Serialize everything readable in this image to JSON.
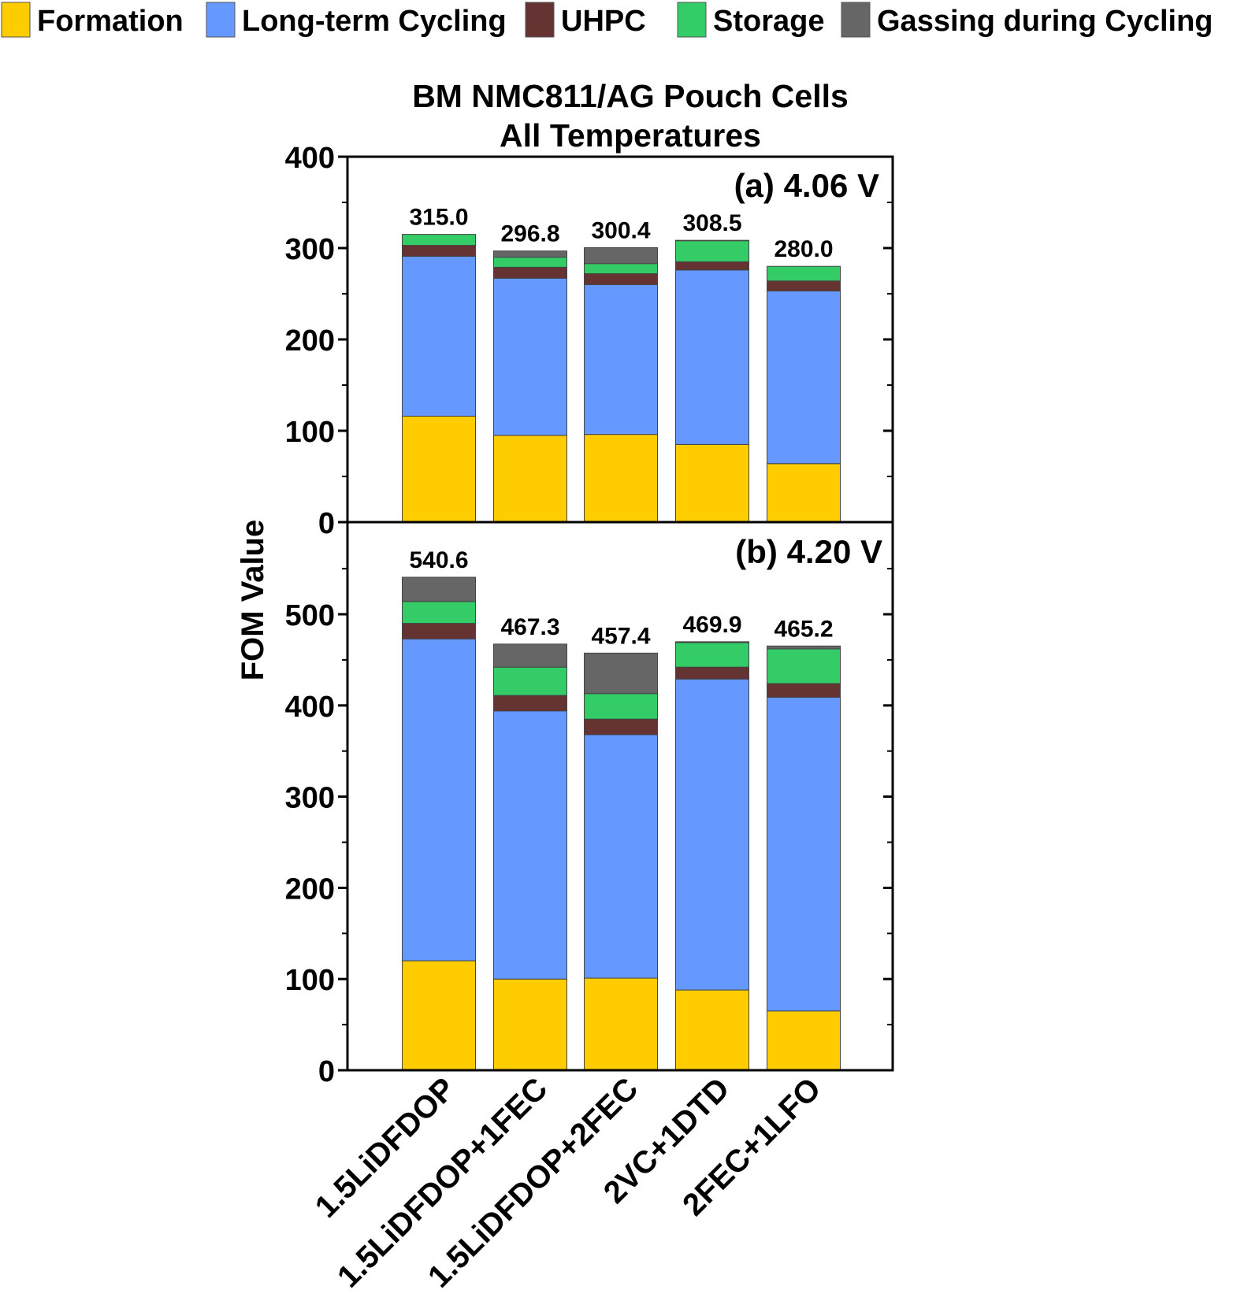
{
  "chart_data": {
    "type": "bar",
    "stacked": true,
    "title": [
      "BM NMC811/AG Pouch Cells",
      "All Temperatures"
    ],
    "ylabel": "FOM Value",
    "categories": [
      "1.5LiDFDOP",
      "1.5LiDFDOP+1FEC",
      "1.5LiDFDOP+2FEC",
      "2VC+1DTD",
      "2FEC+1LFO"
    ],
    "legend": [
      {
        "name": "Formation",
        "color": "#ffcc00"
      },
      {
        "name": "Long-term Cycling",
        "color": "#6699ff"
      },
      {
        "name": "UHPC",
        "color": "#663333"
      },
      {
        "name": "Storage",
        "color": "#33cc66"
      },
      {
        "name": "Gassing during Cycling",
        "color": "#666666"
      }
    ],
    "panels": [
      {
        "label": "(a) 4.06 V",
        "ylim": [
          0,
          400
        ],
        "yticks": [
          0,
          100,
          200,
          300,
          400
        ],
        "tick_labels": [
          "0",
          "100",
          "200",
          "300",
          "400"
        ],
        "totals": [
          "315.0",
          "296.8",
          "300.4",
          "308.5",
          "280.0"
        ],
        "series": [
          {
            "name": "Formation",
            "values": [
              116,
              95,
              96,
              85,
              64
            ]
          },
          {
            "name": "Long-term Cycling",
            "values": [
              175,
              172,
              164,
              191,
              189
            ]
          },
          {
            "name": "UHPC",
            "values": [
              12,
              12,
              12,
              9,
              11
            ]
          },
          {
            "name": "Storage",
            "values": [
              12,
              11,
              11,
              23,
              16
            ]
          },
          {
            "name": "Gassing during Cycling",
            "values": [
              0,
              6.8,
              17.4,
              0.5,
              0
            ]
          }
        ]
      },
      {
        "label": "(b) 4.20 V",
        "ylim": [
          0,
          600
        ],
        "yticks": [
          0,
          100,
          200,
          300,
          400,
          500
        ],
        "tick_labels": [
          "0",
          "100",
          "200",
          "300",
          "400",
          "500"
        ],
        "totals": [
          "540.6",
          "467.3",
          "457.4",
          "469.9",
          "465.2"
        ],
        "series": [
          {
            "name": "Formation",
            "values": [
              120,
              100,
              101,
              88,
              65
            ]
          },
          {
            "name": "Long-term Cycling",
            "values": [
              353,
              294,
              267,
              341,
              344
            ]
          },
          {
            "name": "UHPC",
            "values": [
              17,
              17,
              17,
              13,
              15
            ]
          },
          {
            "name": "Storage",
            "values": [
              24,
              31,
              28,
              27,
              38
            ]
          },
          {
            "name": "Gassing during Cycling",
            "values": [
              26.6,
              25.3,
              44.4,
              0.9,
              3.2
            ]
          }
        ]
      }
    ]
  }
}
